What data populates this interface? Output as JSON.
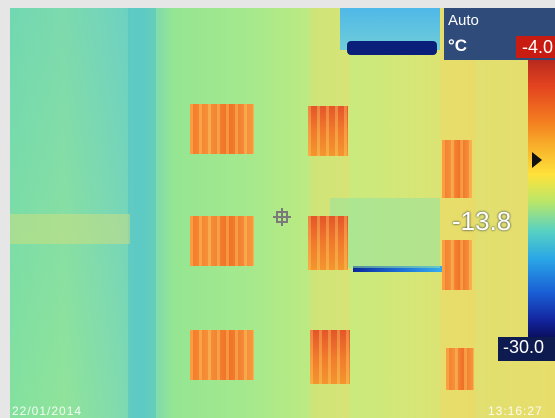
{
  "overlay": {
    "mode_label": "Auto",
    "unit_label": "°C",
    "range_max": "-4.0",
    "current_temp": "-13.8",
    "range_min": "-30.0",
    "date": "22/01/2014",
    "time": "13:16:27"
  },
  "palette": {
    "colors": [
      "#b3261e",
      "#e2421f",
      "#f3781f",
      "#f8b02a",
      "#ffe23a",
      "#b7e66a",
      "#58d2c2",
      "#2aa7e6",
      "#1a5fd6",
      "#13259e",
      "#0a0f60"
    ]
  },
  "icons": {
    "spot_meter": "crosshair-square-icon",
    "level_marker": "triangle-right-icon"
  }
}
